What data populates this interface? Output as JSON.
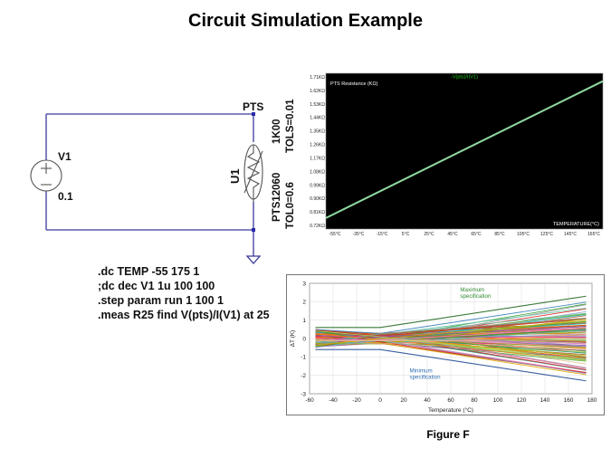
{
  "title": "Circuit Simulation Example",
  "schematic": {
    "source_name": "V1",
    "source_value": "0.1",
    "net_label": "PTS",
    "component_ref": "U1",
    "component_value": "1K00",
    "component_tolerance": "TOLS=0.01",
    "component_part": "PTS12060",
    "component_tolerance2": "TOL0=0.6"
  },
  "commands": [
    ".dc TEMP -55 175 1",
    ";dc dec V1 1u  100 100",
    ".step param run 1 100 1",
    ".meas R25 find V(pts)/I(V1) at 25"
  ],
  "figure_caption": "Figure F",
  "chart_data": [
    {
      "type": "line",
      "header": "-V(pts)/I(V1)",
      "ylabel": "PTS Resistance (KΩ)",
      "xlabel": "TEMPERATURE(°C)",
      "x_ticks": [
        "-55°C",
        "-35°C",
        "-15°C",
        "5°C",
        "25°C",
        "45°C",
        "65°C",
        "85°C",
        "105°C",
        "125°C",
        "145°C",
        "165°C"
      ],
      "y_ticks": [
        "0.72KΩ",
        "0.81KΩ",
        "0.90KΩ",
        "0.99KΩ",
        "1.08KΩ",
        "1.17KΩ",
        "1.26KΩ",
        "1.35KΩ",
        "1.44KΩ",
        "1.53KΩ",
        "1.62KΩ",
        "1.71KΩ"
      ],
      "xlim": [
        -55,
        175
      ],
      "ylim": [
        0.72,
        1.71
      ],
      "series": [
        {
          "x": [
            -55,
            175
          ],
          "y": [
            0.79,
            1.66
          ]
        }
      ],
      "background": "#000000",
      "line_color": "#8fd9a0",
      "header_color": "#22cc22"
    },
    {
      "type": "line",
      "ylabel": "ΔT (K)",
      "xlabel": "Temperature (°C)",
      "x_ticks": [
        "-60",
        "-40",
        "-20",
        "0",
        "20",
        "40",
        "60",
        "80",
        "100",
        "120",
        "140",
        "160",
        "180"
      ],
      "y_ticks": [
        "3",
        "2",
        "1",
        "0",
        "-1",
        "-2",
        "-3"
      ],
      "xlim": [
        -60,
        180
      ],
      "ylim": [
        -3,
        3
      ],
      "envelope": {
        "max_spec": {
          "x": [
            -55,
            0,
            175
          ],
          "y": [
            0.6,
            0.6,
            2.3
          ]
        },
        "min_spec": {
          "x": [
            -55,
            0,
            175
          ],
          "y": [
            -0.6,
            -0.6,
            -2.3
          ]
        }
      },
      "runs": 100,
      "annotations": [
        {
          "text": [
            "Maximum",
            "specification"
          ],
          "color": "#2f8a2f"
        },
        {
          "text": [
            "Minimum",
            "specification"
          ],
          "color": "#2f6fb0"
        }
      ]
    }
  ]
}
